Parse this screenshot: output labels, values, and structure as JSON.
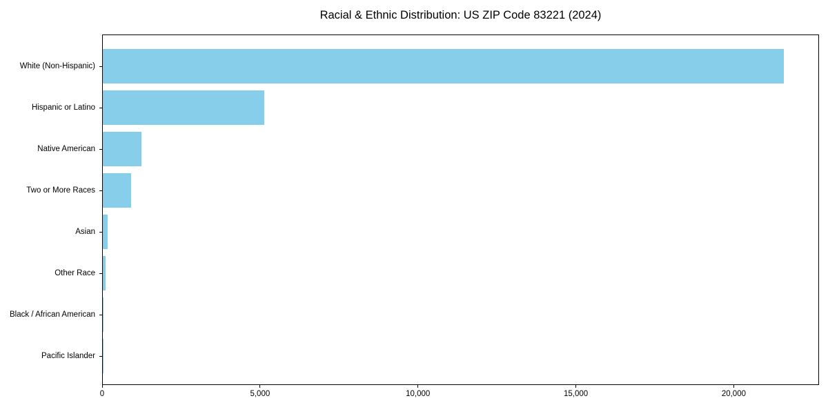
{
  "chart_data": {
    "type": "bar",
    "orientation": "horizontal",
    "title": "Racial & Ethnic Distribution: US ZIP Code 83221 (2024)",
    "xlabel": "",
    "ylabel": "",
    "categories": [
      "White (Non-Hispanic)",
      "Hispanic or Latino",
      "Native American",
      "Two or More Races",
      "Asian",
      "Other Race",
      "Black / African American",
      "Pacific Islander"
    ],
    "values": [
      21600,
      5130,
      1230,
      900,
      150,
      80,
      20,
      5
    ],
    "xlim": [
      0,
      22700
    ],
    "xticks": [
      0,
      5000,
      10000,
      15000,
      20000
    ],
    "xtick_labels": [
      "0",
      "5,000",
      "10,000",
      "15,000",
      "20,000"
    ],
    "bar_color": "#87CEEB",
    "axis_color": "#000000",
    "grid": false,
    "legend": null
  }
}
